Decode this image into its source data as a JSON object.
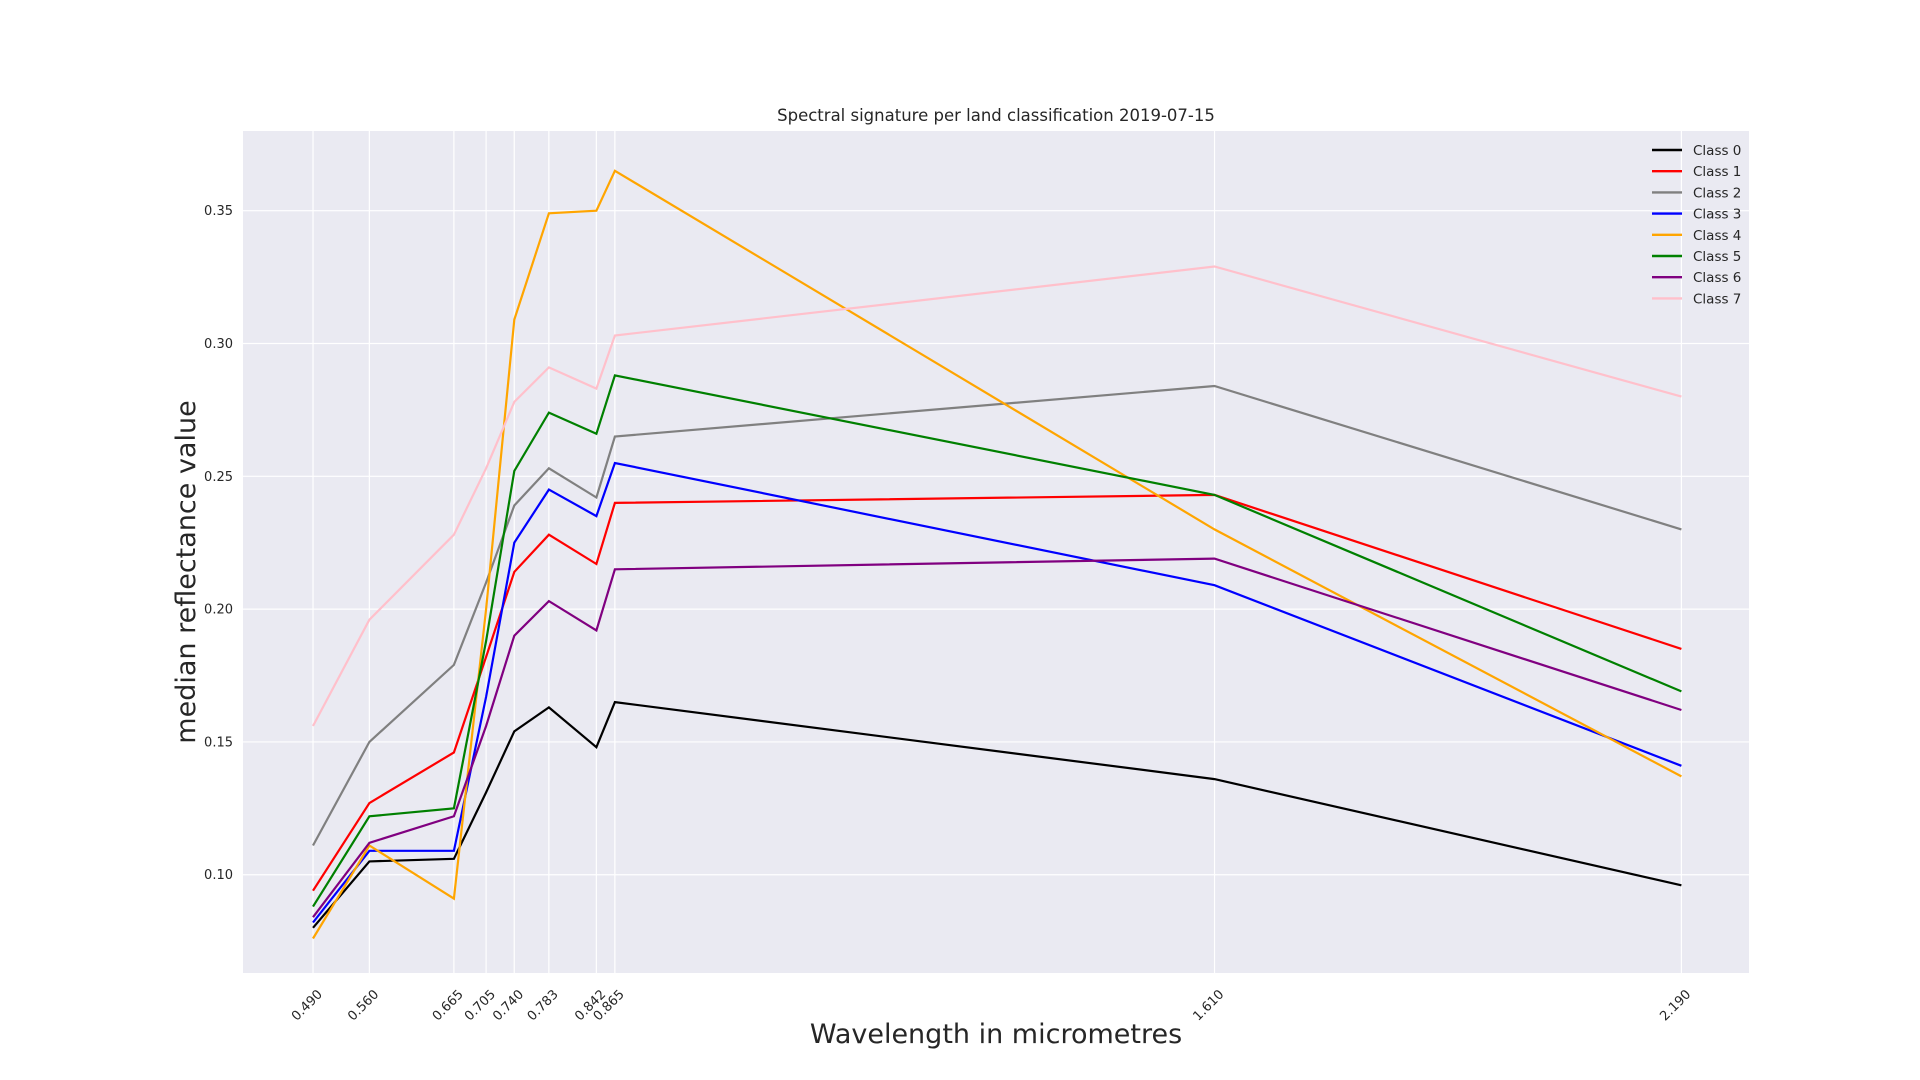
{
  "chart_data": {
    "type": "line",
    "title": "Spectral signature per land classification 2019-07-15",
    "xlabel": "Wavelength in micrometres",
    "ylabel": "median reflectance value",
    "x": [
      0.49,
      0.56,
      0.665,
      0.705,
      0.74,
      0.783,
      0.842,
      0.865,
      1.61,
      2.19
    ],
    "xtick_labels": [
      "0.490",
      "0.560",
      "0.665",
      "0.705",
      "0.740",
      "0.783",
      "0.842",
      "0.865",
      "1.610",
      "2.190"
    ],
    "yticks": [
      0.1,
      0.15,
      0.2,
      0.25,
      0.3,
      0.35
    ],
    "ytick_labels": [
      "0.10",
      "0.15",
      "0.20",
      "0.25",
      "0.30",
      "0.35"
    ],
    "xlim": [
      0.403,
      2.274
    ],
    "ylim": [
      0.063,
      0.38
    ],
    "grid": true,
    "legend_position": "top-right",
    "background_color": "#eaeaf2",
    "series": [
      {
        "name": "Class 0",
        "color": "#000000",
        "values": [
          0.08,
          0.105,
          0.106,
          0.131,
          0.154,
          0.163,
          0.148,
          0.165,
          0.136,
          0.096
        ]
      },
      {
        "name": "Class 1",
        "color": "#ff0000",
        "values": [
          0.094,
          0.127,
          0.146,
          0.182,
          0.214,
          0.228,
          0.217,
          0.24,
          0.243,
          0.185
        ]
      },
      {
        "name": "Class 2",
        "color": "#808080",
        "values": [
          0.111,
          0.15,
          0.179,
          0.21,
          0.239,
          0.253,
          0.242,
          0.265,
          0.284,
          0.23
        ]
      },
      {
        "name": "Class 3",
        "color": "#0000ff",
        "values": [
          0.082,
          0.109,
          0.109,
          0.167,
          0.225,
          0.245,
          0.235,
          0.255,
          0.209,
          0.141
        ]
      },
      {
        "name": "Class 4",
        "color": "#ffa500",
        "values": [
          0.076,
          0.111,
          0.091,
          0.2,
          0.309,
          0.349,
          0.35,
          0.365,
          0.23,
          0.137
        ]
      },
      {
        "name": "Class 5",
        "color": "#008000",
        "values": [
          0.088,
          0.122,
          0.125,
          0.188,
          0.252,
          0.274,
          0.266,
          0.288,
          0.243,
          0.169
        ]
      },
      {
        "name": "Class 6",
        "color": "#800080",
        "values": [
          0.084,
          0.112,
          0.122,
          0.156,
          0.19,
          0.203,
          0.192,
          0.215,
          0.219,
          0.162
        ]
      },
      {
        "name": "Class 7",
        "color": "#ffc0cb",
        "values": [
          0.156,
          0.196,
          0.228,
          0.253,
          0.278,
          0.291,
          0.283,
          0.303,
          0.329,
          0.28
        ]
      }
    ]
  }
}
